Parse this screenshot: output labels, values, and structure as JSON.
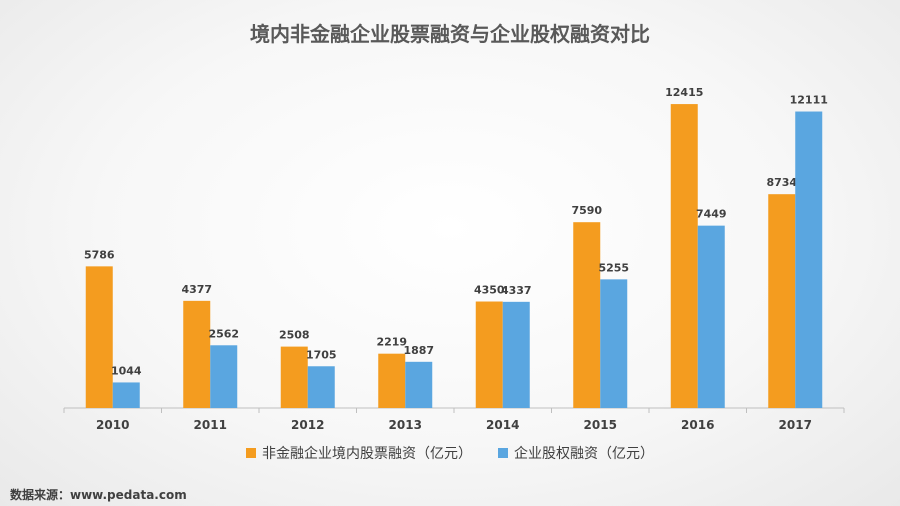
{
  "chart_data": {
    "type": "bar",
    "title": "境内非金融企业股票融资与企业股权融资对比",
    "categories": [
      "2010",
      "2011",
      "2012",
      "2013",
      "2014",
      "2015",
      "2016",
      "2017"
    ],
    "series": [
      {
        "name": "非金融企业境内股票融资（亿元）",
        "color": "#f49c1f",
        "values": [
          5786,
          4377,
          2508,
          2219,
          4350,
          7590,
          12415,
          8734
        ]
      },
      {
        "name": "企业股权融资（亿元）",
        "color": "#5aa6e0",
        "values": [
          1044,
          2562,
          1705,
          1887,
          4337,
          5255,
          7449,
          12111
        ]
      }
    ],
    "ylim": [
      0,
      12500
    ],
    "grid": false,
    "legend_position": "bottom"
  },
  "source_note": "数据来源：www.pedata.com"
}
